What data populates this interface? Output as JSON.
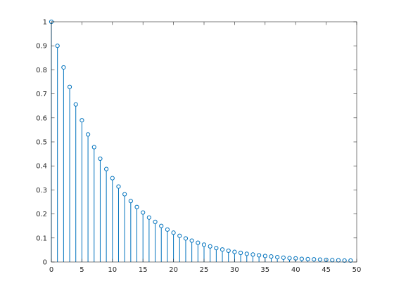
{
  "chart_data": {
    "type": "stem",
    "title": "",
    "xlabel": "",
    "ylabel": "",
    "xlim": [
      0,
      50
    ],
    "ylim": [
      0,
      1
    ],
    "x_ticks": [
      0,
      5,
      10,
      15,
      20,
      25,
      30,
      35,
      40,
      45,
      50
    ],
    "y_ticks": [
      0,
      0.1,
      0.2,
      0.3,
      0.4,
      0.5,
      0.6,
      0.7,
      0.8,
      0.9,
      1
    ],
    "x_tick_labels": [
      "0",
      "5",
      "10",
      "15",
      "20",
      "25",
      "30",
      "35",
      "40",
      "45",
      "50"
    ],
    "y_tick_labels": [
      "0",
      "0.1",
      "0.2",
      "0.3",
      "0.4",
      "0.5",
      "0.6",
      "0.7",
      "0.8",
      "0.9",
      "1"
    ],
    "grid": false,
    "box": true,
    "marker": "circle",
    "colors": {
      "stem": "#0072bd",
      "axis": "#262626",
      "background": "#ffffff"
    },
    "series": [
      {
        "x": [
          0,
          1,
          2,
          3,
          4,
          5,
          6,
          7,
          8,
          9,
          10,
          11,
          12,
          13,
          14,
          15,
          16,
          17,
          18,
          19,
          20,
          21,
          22,
          23,
          24,
          25,
          26,
          27,
          28,
          29,
          30,
          31,
          32,
          33,
          34,
          35,
          36,
          37,
          38,
          39,
          40,
          41,
          42,
          43,
          44,
          45,
          46,
          47,
          48,
          49
        ],
        "values": [
          1.0,
          0.9,
          0.81,
          0.729,
          0.656,
          0.59,
          0.531,
          0.478,
          0.43,
          0.387,
          0.349,
          0.314,
          0.282,
          0.254,
          0.229,
          0.206,
          0.185,
          0.167,
          0.15,
          0.135,
          0.122,
          0.109,
          0.098,
          0.089,
          0.08,
          0.072,
          0.065,
          0.058,
          0.052,
          0.047,
          0.042,
          0.038,
          0.034,
          0.031,
          0.028,
          0.025,
          0.023,
          0.02,
          0.018,
          0.016,
          0.015,
          0.013,
          0.012,
          0.011,
          0.01,
          0.009,
          0.008,
          0.007,
          0.006,
          0.006
        ]
      }
    ]
  }
}
